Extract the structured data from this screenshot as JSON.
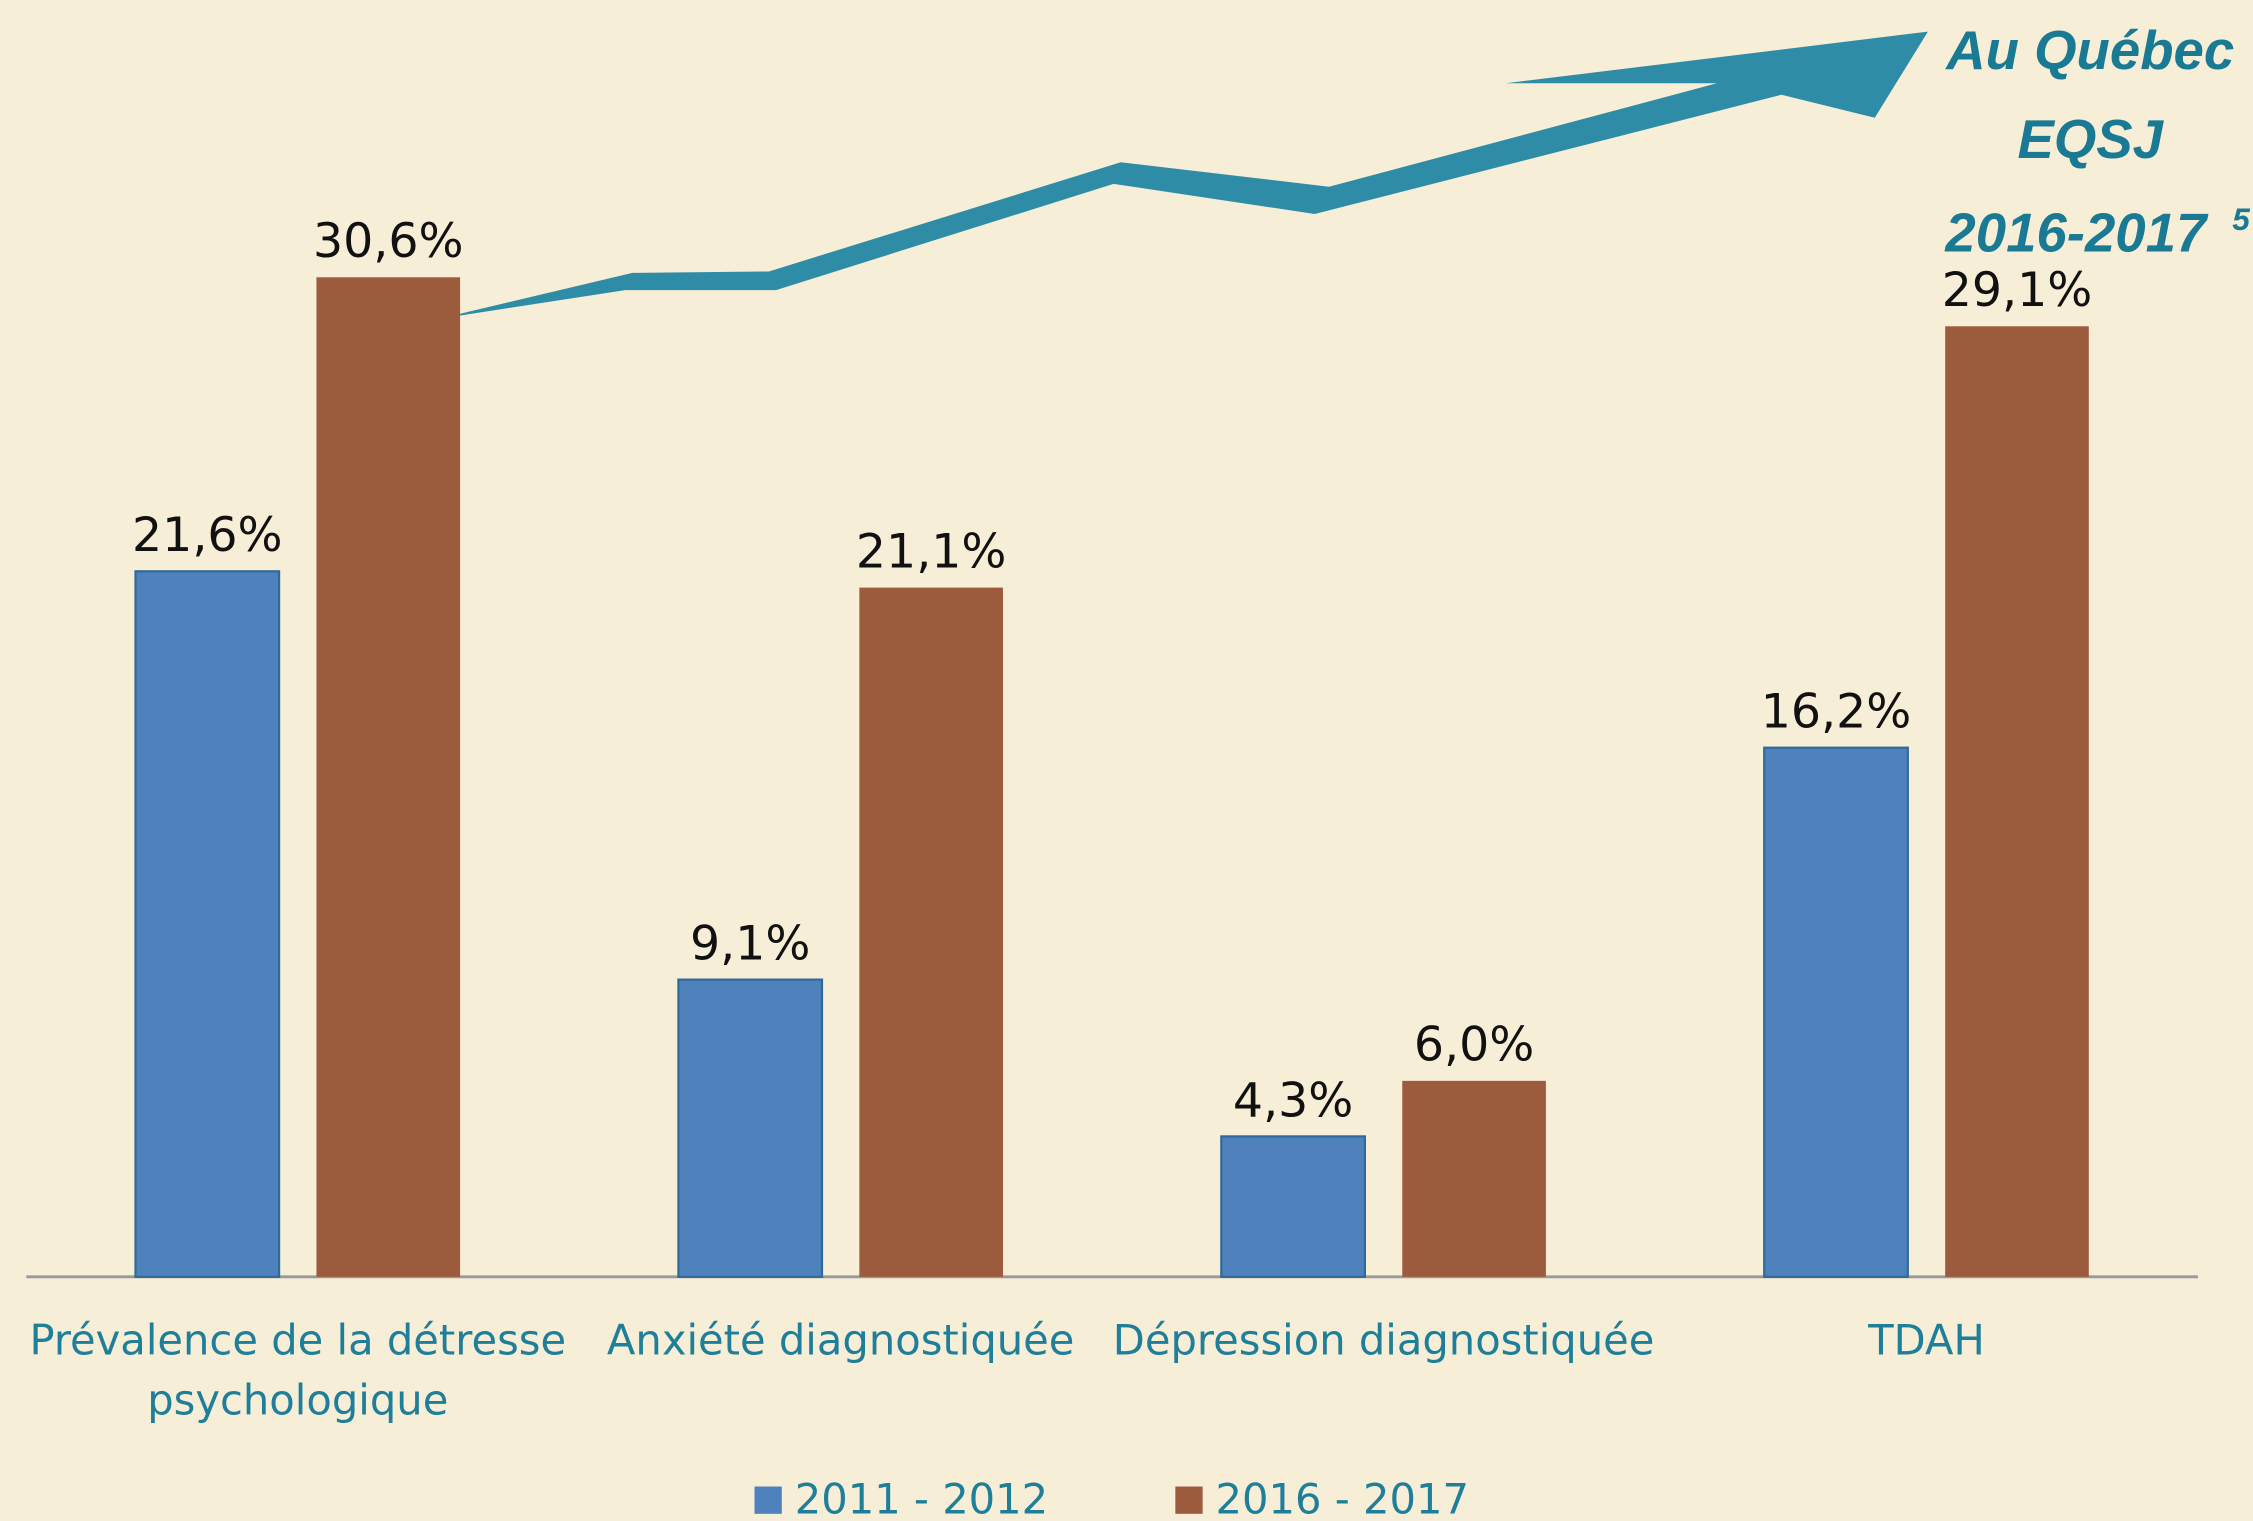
{
  "chart_data": {
    "type": "bar",
    "categories": [
      "Prévalence de la détresse psychologique",
      "Anxiété diagnostiquée",
      "Dépression diagnostiquée",
      "TDAH"
    ],
    "series": [
      {
        "name": "2011 - 2012",
        "color": "#4f81bd",
        "values": [
          21.6,
          9.1,
          4.3,
          16.2
        ],
        "value_labels": [
          "21,6%",
          "9,1%",
          "4,3%",
          "16,2%"
        ]
      },
      {
        "name": "2016 - 2017",
        "color": "#9c5b3c",
        "values": [
          30.6,
          21.1,
          6.0,
          29.1
        ],
        "value_labels": [
          "30,6%",
          "21,1%",
          "6,0%",
          "29,1%"
        ]
      }
    ],
    "ylim": [
      0,
      35
    ],
    "annotation": {
      "lines": [
        "Au Québec",
        "EQSJ",
        "2016-2017"
      ],
      "superscript": "5"
    }
  }
}
